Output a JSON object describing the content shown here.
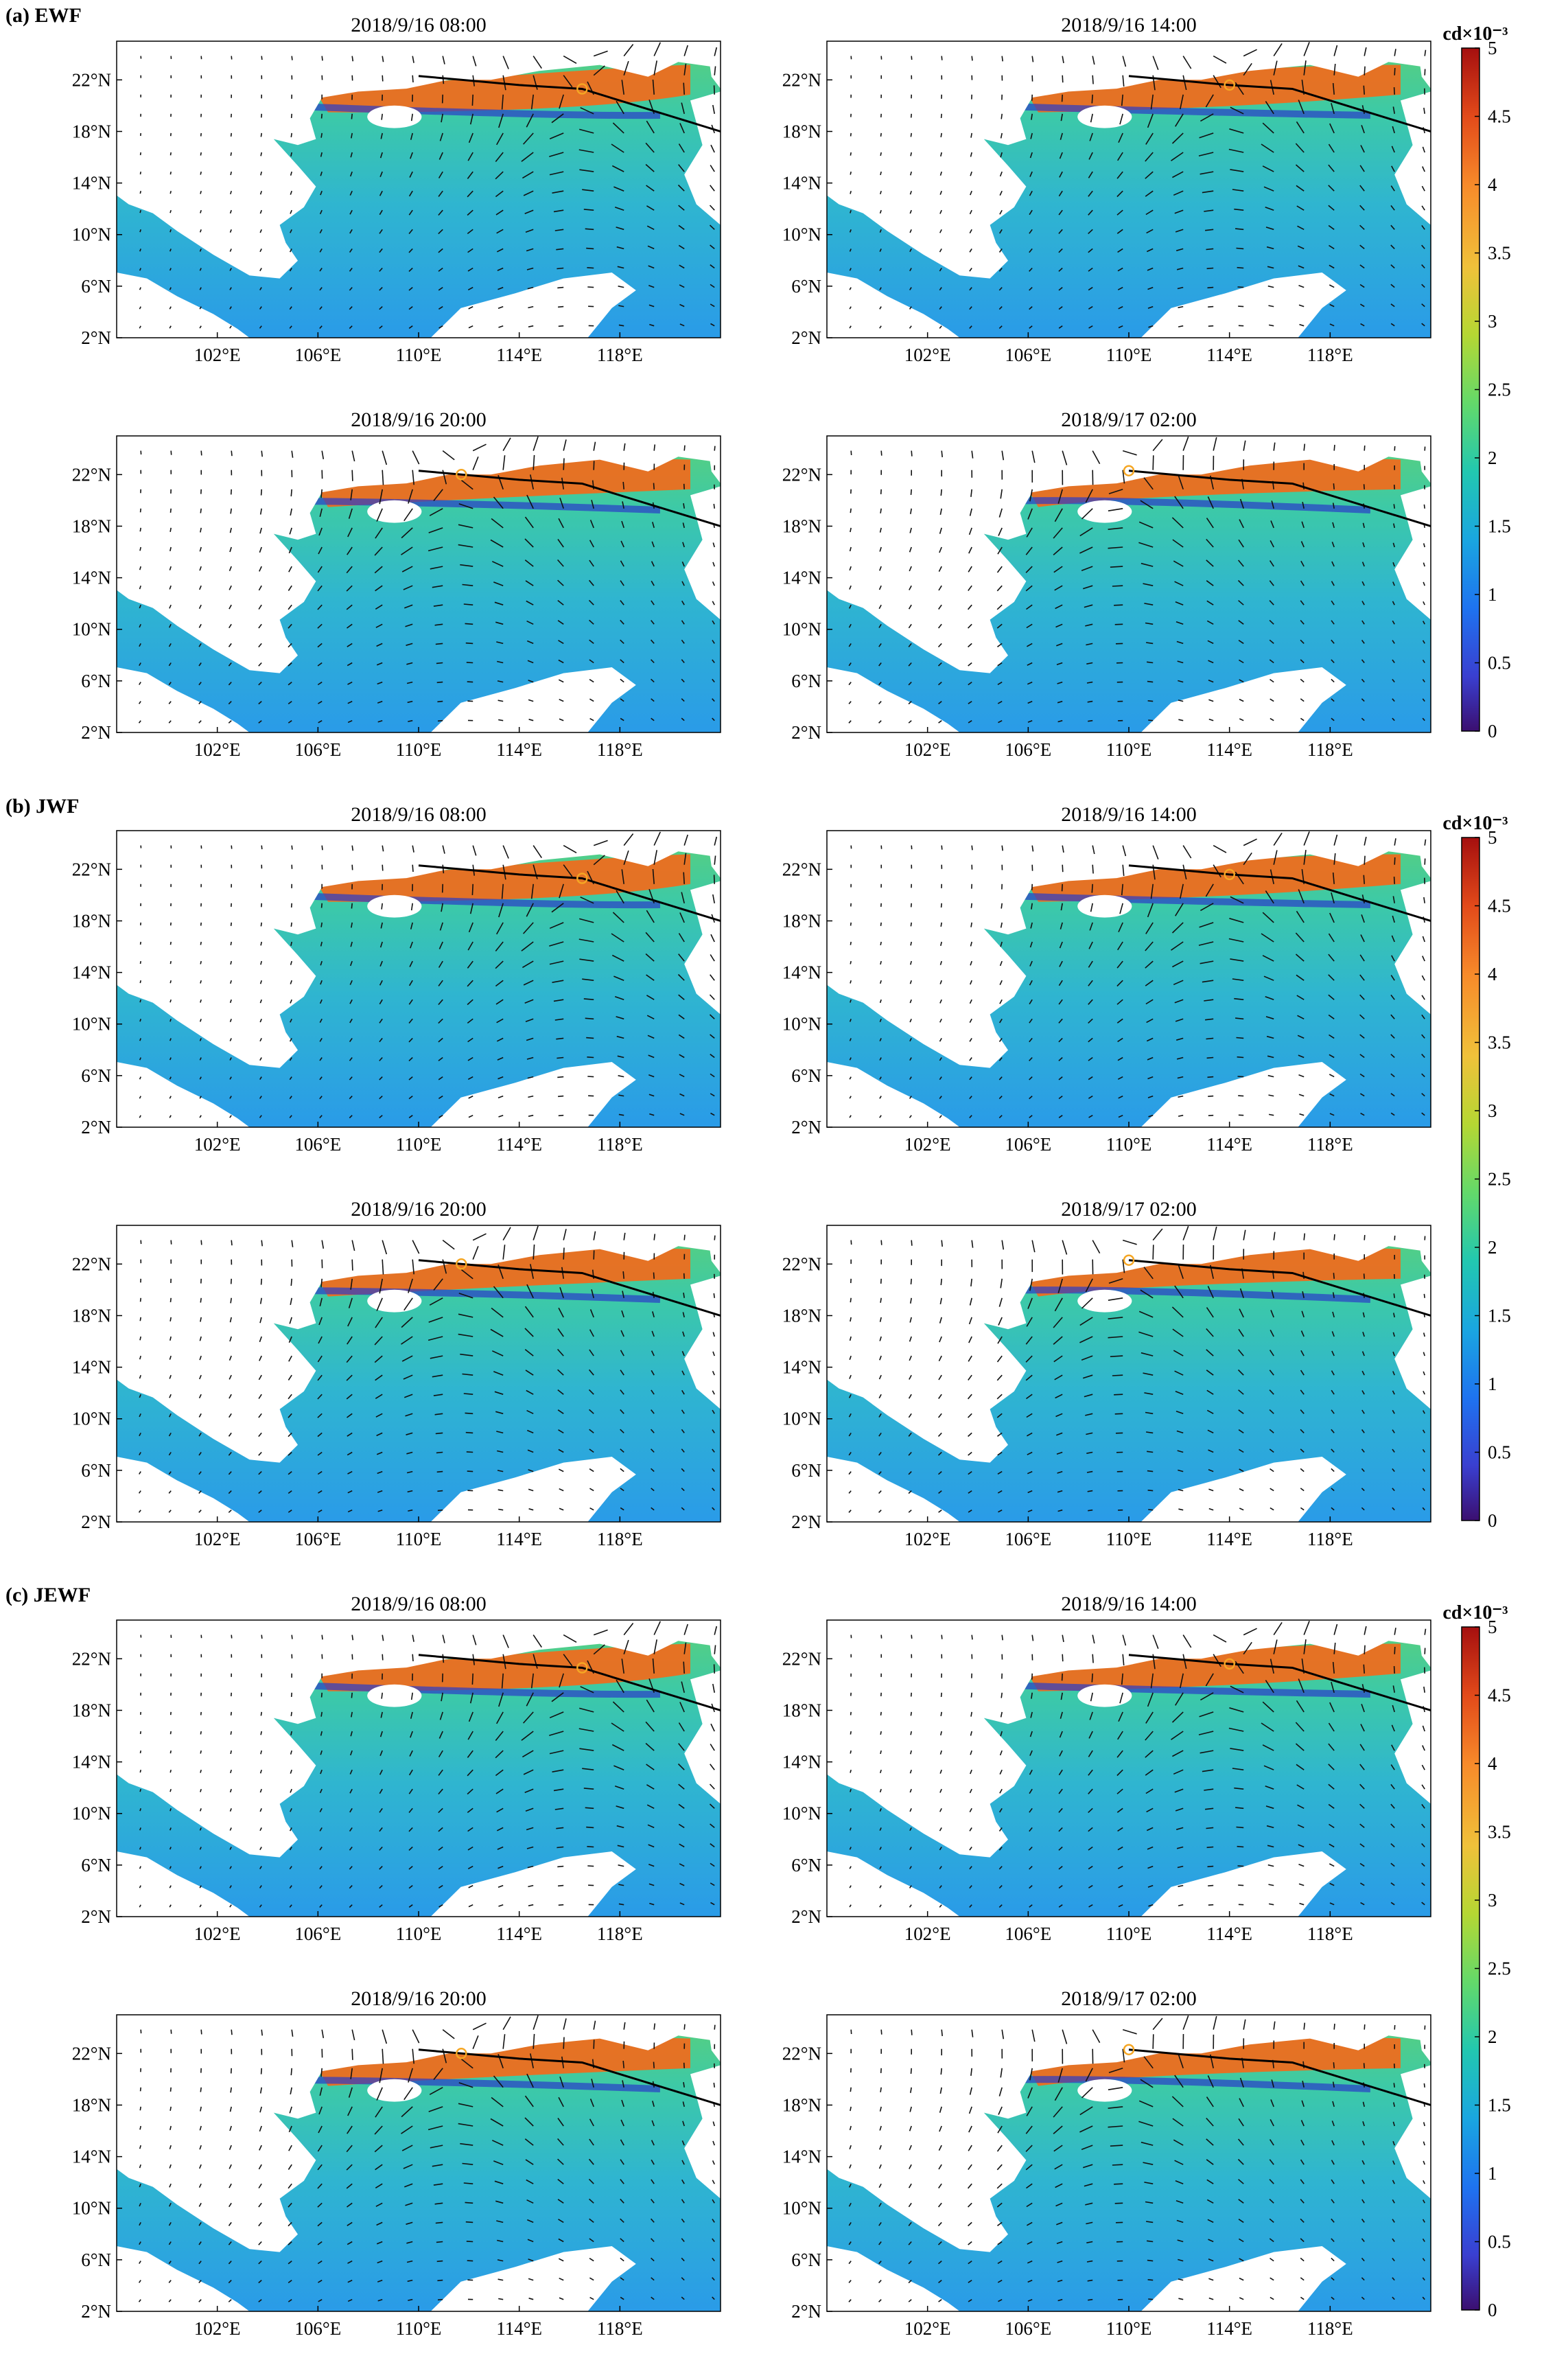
{
  "sections": [
    {
      "label": "(a) EWF"
    },
    {
      "label": "(b) JWF"
    },
    {
      "label": "(c) JEWF"
    }
  ],
  "chart_data": {
    "type": "heatmap",
    "variable_unit": "cd×10⁻³",
    "colorbar": {
      "min": 0,
      "max": 5,
      "ticks": [
        "5",
        "4.5",
        "4",
        "3.5",
        "3",
        "2.5",
        "2",
        "1.5",
        "1",
        "0.5",
        "0"
      ],
      "colormap": [
        "#3b0f70",
        "#3a3fd0",
        "#1e73f0",
        "#1aa6e0",
        "#22c7b0",
        "#63d96a",
        "#b5d733",
        "#f0c13a",
        "#f78a2a",
        "#e24a1a",
        "#a50f0f"
      ]
    },
    "xticks": [
      "102°E",
      "106°E",
      "110°E",
      "114°E",
      "118°E"
    ],
    "yticks": [
      "22°N",
      "18°N",
      "14°N",
      "10°N",
      "6°N",
      "2°N"
    ],
    "xlim_deg": [
      98,
      122
    ],
    "ylim_deg": [
      2,
      25
    ],
    "panels": [
      {
        "section": 0,
        "title": "2018/9/16 08:00",
        "typhoon_center": [
          116.5,
          21.3
        ]
      },
      {
        "section": 0,
        "title": "2018/9/16 14:00",
        "typhoon_center": [
          114.0,
          21.6
        ]
      },
      {
        "section": 0,
        "title": "2018/9/16 20:00",
        "typhoon_center": [
          111.7,
          22.0
        ]
      },
      {
        "section": 0,
        "title": "2018/9/17 02:00",
        "typhoon_center": [
          110.0,
          22.3
        ]
      },
      {
        "section": 1,
        "title": "2018/9/16 08:00",
        "typhoon_center": [
          116.5,
          21.3
        ]
      },
      {
        "section": 1,
        "title": "2018/9/16 14:00",
        "typhoon_center": [
          114.0,
          21.6
        ]
      },
      {
        "section": 1,
        "title": "2018/9/16 20:00",
        "typhoon_center": [
          111.7,
          22.0
        ]
      },
      {
        "section": 1,
        "title": "2018/9/17 02:00",
        "typhoon_center": [
          110.0,
          22.3
        ]
      },
      {
        "section": 2,
        "title": "2018/9/16 08:00",
        "typhoon_center": [
          116.5,
          21.3
        ]
      },
      {
        "section": 2,
        "title": "2018/9/16 14:00",
        "typhoon_center": [
          114.0,
          21.6
        ]
      },
      {
        "section": 2,
        "title": "2018/9/16 20:00",
        "typhoon_center": [
          111.7,
          22.0
        ]
      },
      {
        "section": 2,
        "title": "2018/9/17 02:00",
        "typhoon_center": [
          110.0,
          22.3
        ]
      }
    ],
    "typhoon_track": [
      [
        110.0,
        22.3
      ],
      [
        111.7,
        22.0
      ],
      [
        114.0,
        21.6
      ],
      [
        116.5,
        21.3
      ],
      [
        122.0,
        18.0
      ]
    ],
    "field_levels": {
      "open_sea": 1.1,
      "mid_basin": 1.6,
      "near_coast": 4.3
    }
  },
  "colors": {
    "background": "#ffffff",
    "land": "#ffffff",
    "track": "#000000",
    "center_marker": "#f5a623"
  }
}
